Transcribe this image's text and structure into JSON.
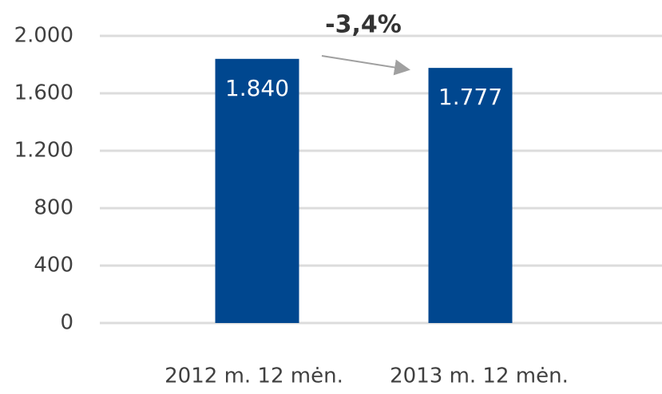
{
  "chart_data": {
    "type": "bar",
    "categories": [
      "2012 m. 12 mėn.",
      "2013 m. 12 mėn."
    ],
    "values": [
      1840,
      1777
    ],
    "value_labels": [
      "1.840",
      "1.777"
    ],
    "color": "#00478f",
    "ylim": [
      0,
      2000
    ],
    "yticks": [
      0,
      400,
      800,
      {
        "value": 1200,
        "label": "1.200"
      },
      {
        "value": 1600,
        "label": "1.600"
      },
      {
        "value": 2000,
        "label": "2.000"
      }
    ],
    "grid": true,
    "annotation": "-3,4%"
  }
}
